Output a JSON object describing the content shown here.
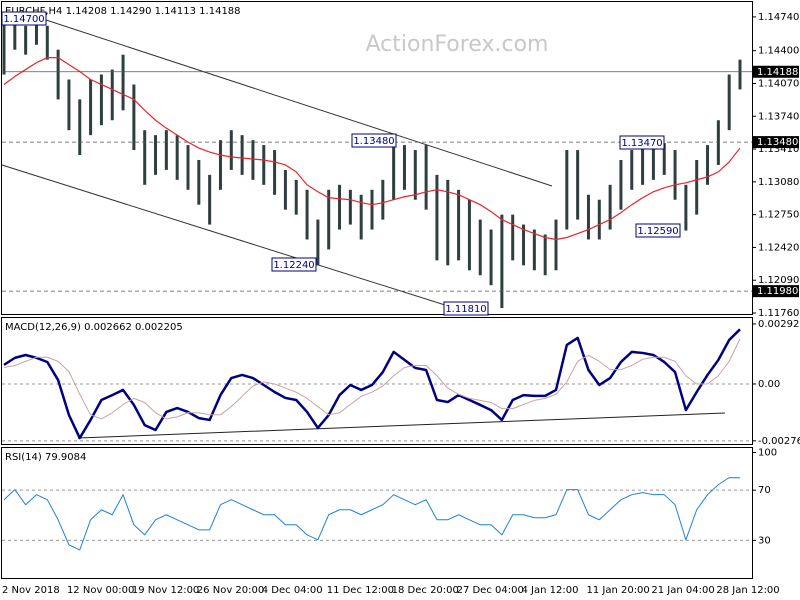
{
  "chart_data": [
    {
      "type": "range-bar",
      "title": "EURCHF,H4  1.14208 1.14290 1.14113 1.14188",
      "watermark": "ActionForex.com",
      "color": "#2f3f3f",
      "high": [
        1.1466,
        1.147,
        1.1465,
        1.147,
        1.1465,
        1.1441,
        1.1411,
        1.1391,
        1.1411,
        1.1416,
        1.1421,
        1.1436,
        1.1406,
        1.136,
        1.1355,
        1.136,
        1.1355,
        1.1345,
        1.133,
        1.1315,
        1.135,
        1.136,
        1.1355,
        1.135,
        1.1345,
        1.134,
        1.132,
        1.131,
        1.13,
        1.127,
        1.13,
        1.1305,
        1.13,
        1.1295,
        1.13,
        1.131,
        1.1348,
        1.1345,
        1.134,
        1.1345,
        1.1315,
        1.131,
        1.13,
        1.129,
        1.127,
        1.126,
        1.1275,
        1.1275,
        1.1265,
        1.126,
        1.1255,
        1.127,
        1.134,
        1.134,
        1.1295,
        1.129,
        1.1305,
        1.133,
        1.134,
        1.1345,
        1.1345,
        1.1347,
        1.134,
        1.1305,
        1.133,
        1.1345,
        1.137,
        1.1416,
        1.1431
      ],
      "low": [
        1.1416,
        1.1441,
        1.1436,
        1.1446,
        1.1431,
        1.1391,
        1.136,
        1.1335,
        1.1355,
        1.1365,
        1.137,
        1.138,
        1.134,
        1.1305,
        1.1315,
        1.132,
        1.131,
        1.13,
        1.1285,
        1.1265,
        1.13,
        1.132,
        1.1315,
        1.131,
        1.1305,
        1.1295,
        1.128,
        1.1275,
        1.125,
        1.1224,
        1.124,
        1.126,
        1.1265,
        1.125,
        1.126,
        1.127,
        1.129,
        1.13,
        1.129,
        1.128,
        1.1229,
        1.1224,
        1.1229,
        1.1219,
        1.1214,
        1.1204,
        1.1181,
        1.1229,
        1.1224,
        1.1219,
        1.1214,
        1.1219,
        1.126,
        1.127,
        1.125,
        1.125,
        1.126,
        1.128,
        1.13,
        1.1305,
        1.131,
        1.1315,
        1.129,
        1.1259,
        1.1275,
        1.1305,
        1.1325,
        1.136,
        1.1401
      ],
      "ma": {
        "color": "#e8262b",
        "values": [
          1.1406,
          1.1414,
          1.1421,
          1.1428,
          1.1433,
          1.1433,
          1.1426,
          1.1419,
          1.1411,
          1.1406,
          1.1401,
          1.1396,
          1.1391,
          1.138,
          1.137,
          1.1362,
          1.1355,
          1.1348,
          1.1342,
          1.1338,
          1.1335,
          1.1333,
          1.1332,
          1.1331,
          1.133,
          1.1328,
          1.1325,
          1.1318,
          1.1305,
          1.1298,
          1.1292,
          1.1291,
          1.129,
          1.1287,
          1.1285,
          1.1287,
          1.129,
          1.1293,
          1.1295,
          1.1298,
          1.13,
          1.1298,
          1.1295,
          1.129,
          1.1285,
          1.1278,
          1.127,
          1.1265,
          1.126,
          1.1256,
          1.1252,
          1.125,
          1.1252,
          1.1256,
          1.126,
          1.1265,
          1.127,
          1.1277,
          1.1285,
          1.1292,
          1.1298,
          1.1302,
          1.1305,
          1.1307,
          1.131,
          1.1313,
          1.1318,
          1.1328,
          1.1342
        ]
      },
      "levels": [
        {
          "value": 1.14188,
          "label": "1.14188",
          "style": "solid"
        },
        {
          "value": 1.1348,
          "label": "1.13480",
          "style": "dashed"
        },
        {
          "value": 1.1198,
          "label": "1.11980",
          "style": "dashed"
        }
      ],
      "annotations": [
        "1.14700",
        "1.13480",
        "1.13470",
        "1.12590",
        "1.12240",
        "1.11810"
      ],
      "ylim": [
        1.1175,
        1.1489
      ],
      "yticks": [
        {
          "value": 1.1474,
          "label": "1.14740"
        },
        {
          "value": 1.144,
          "label": "1.14400"
        },
        {
          "value": 1.1407,
          "label": "1.14070"
        },
        {
          "value": 1.1374,
          "label": "1.13740"
        },
        {
          "value": 1.1341,
          "label": "1.13410"
        },
        {
          "value": 1.1308,
          "label": "1.13080"
        },
        {
          "value": 1.1275,
          "label": "1.12750"
        },
        {
          "value": 1.1242,
          "label": "1.12420"
        },
        {
          "value": 1.1209,
          "label": "1.12090"
        },
        {
          "value": 1.1176,
          "label": "1.11760"
        }
      ]
    },
    {
      "type": "line",
      "title": "MACD(12,26,9) 0.002662 0.002205",
      "series": [
        {
          "color": "#000080",
          "width": 2.5,
          "values": [
            0.00093,
            0.00127,
            0.00141,
            0.00127,
            0.00107,
            0.00019,
            -0.00151,
            -0.00263,
            -0.00175,
            -0.00078,
            -0.00054,
            -0.00029,
            -0.00102,
            -0.002,
            -0.00224,
            -0.00136,
            -0.00117,
            -0.00136,
            -0.00166,
            -0.00175,
            -0.00054,
            0.00029,
            0.00044,
            0.00029,
            -5e-05,
            -0.00039,
            -0.00068,
            -0.00078,
            -0.00136,
            -0.00214,
            -0.00151,
            -0.00054,
            -5e-05,
            -0.00029,
            -5e-05,
            0.00058,
            0.00156,
            0.00117,
            0.00078,
            0.00068,
            -0.00078,
            -0.00088,
            -0.00054,
            -0.00078,
            -0.00102,
            -0.00127,
            -0.00175,
            -0.00078,
            -0.00054,
            -0.00058,
            -0.00058,
            -0.00029,
            0.0019,
            0.00224,
            0.00068,
            -5e-05,
            0.00029,
            0.00107,
            0.00156,
            0.00151,
            0.00141,
            0.00107,
            0.00058,
            -0.00127,
            -0.00039,
            0.00044,
            0.00117,
            0.00214,
            0.00266
          ]
        },
        {
          "color": "#c9a3a3",
          "width": 1,
          "values": [
            0.0008,
            0.0009,
            0.0011,
            0.0013,
            0.0013,
            0.0011,
            0.0006,
            -0.0005,
            -0.0015,
            -0.0017,
            -0.0014,
            -0.001,
            -0.0007,
            -0.0009,
            -0.0014,
            -0.0017,
            -0.0016,
            -0.0014,
            -0.0014,
            -0.0015,
            -0.0015,
            -0.0011,
            -0.0006,
            -0.0001,
            0.0001,
            0,
            -0.0002,
            -0.0004,
            -0.0007,
            -0.0011,
            -0.0015,
            -0.0014,
            -0.001,
            -0.0006,
            -0.0004,
            -0.0001,
            0.0004,
            0.0008,
            0.0009,
            0.0009,
            0.0004,
            -0.0002,
            -0.0005,
            -0.0007,
            -0.0008,
            -0.0009,
            -0.0012,
            -0.0012,
            -0.001,
            -0.0008,
            -0.0007,
            -0.0005,
            0.0001,
            0.0011,
            0.0014,
            0.0011,
            0.0007,
            0.0007,
            0.0009,
            0.0012,
            0.0013,
            0.0013,
            0.0011,
            0.0004,
            0,
            0,
            0.0004,
            0.0011,
            0.0022
          ]
        }
      ],
      "ylim": [
        -0.00292,
        0.00321
      ],
      "yticks": [
        0.00292,
        {
          "value": 0,
          "label": "0.00"
        },
        -0.002765
      ],
      "grid": true
    },
    {
      "type": "line",
      "title": "RSI(14) 79.9084",
      "series": [
        {
          "color": "#1e82dc",
          "width": 1,
          "values": [
            62.4,
            70.4,
            58.4,
            66.4,
            62.4,
            46.4,
            26.4,
            22.4,
            46.4,
            54.4,
            50.4,
            66.4,
            42.4,
            34.4,
            46.4,
            50.4,
            46.4,
            42.4,
            38.4,
            38.4,
            58.4,
            62.4,
            58.4,
            54.4,
            50.4,
            50.4,
            42.4,
            42.4,
            34.4,
            30.4,
            50.4,
            54.4,
            54.4,
            50.4,
            54.4,
            58.4,
            66.4,
            62.4,
            58.4,
            62.4,
            46.4,
            46.4,
            50.4,
            46.4,
            42.4,
            42.4,
            34.4,
            50.4,
            50.4,
            48,
            48,
            50.4,
            70.4,
            70.4,
            50.4,
            46.4,
            54.4,
            62.4,
            66.4,
            68,
            66.4,
            66.4,
            58.4,
            30.4,
            54.4,
            66.4,
            74.4,
            80,
            79.9
          ]
        }
      ],
      "categories": [
        "2 Nov 2018",
        null,
        null,
        null,
        null,
        null,
        "12 Nov 00:00",
        null,
        null,
        null,
        null,
        null,
        "19 Nov 12:00",
        null,
        null,
        null,
        null,
        null,
        "26 Nov 20:00",
        null,
        null,
        null,
        null,
        null,
        "4 Dec 04:00",
        null,
        null,
        null,
        null,
        null,
        "11 Dec 12:00",
        null,
        null,
        null,
        null,
        null,
        "18 Dec 20:00",
        null,
        null,
        null,
        null,
        null,
        "27 Dec 04:00",
        null,
        null,
        null,
        null,
        null,
        "4 Jan 12:00",
        null,
        null,
        null,
        null,
        null,
        "11 Jan 20:00",
        null,
        null,
        null,
        null,
        null,
        "21 Jan 04:00",
        null,
        null,
        null,
        null,
        null,
        "28 Jan 12:00",
        null,
        null
      ],
      "ylim": [
        0,
        103.6
      ],
      "yticks": [
        100,
        70,
        30
      ],
      "grid": true
    }
  ]
}
